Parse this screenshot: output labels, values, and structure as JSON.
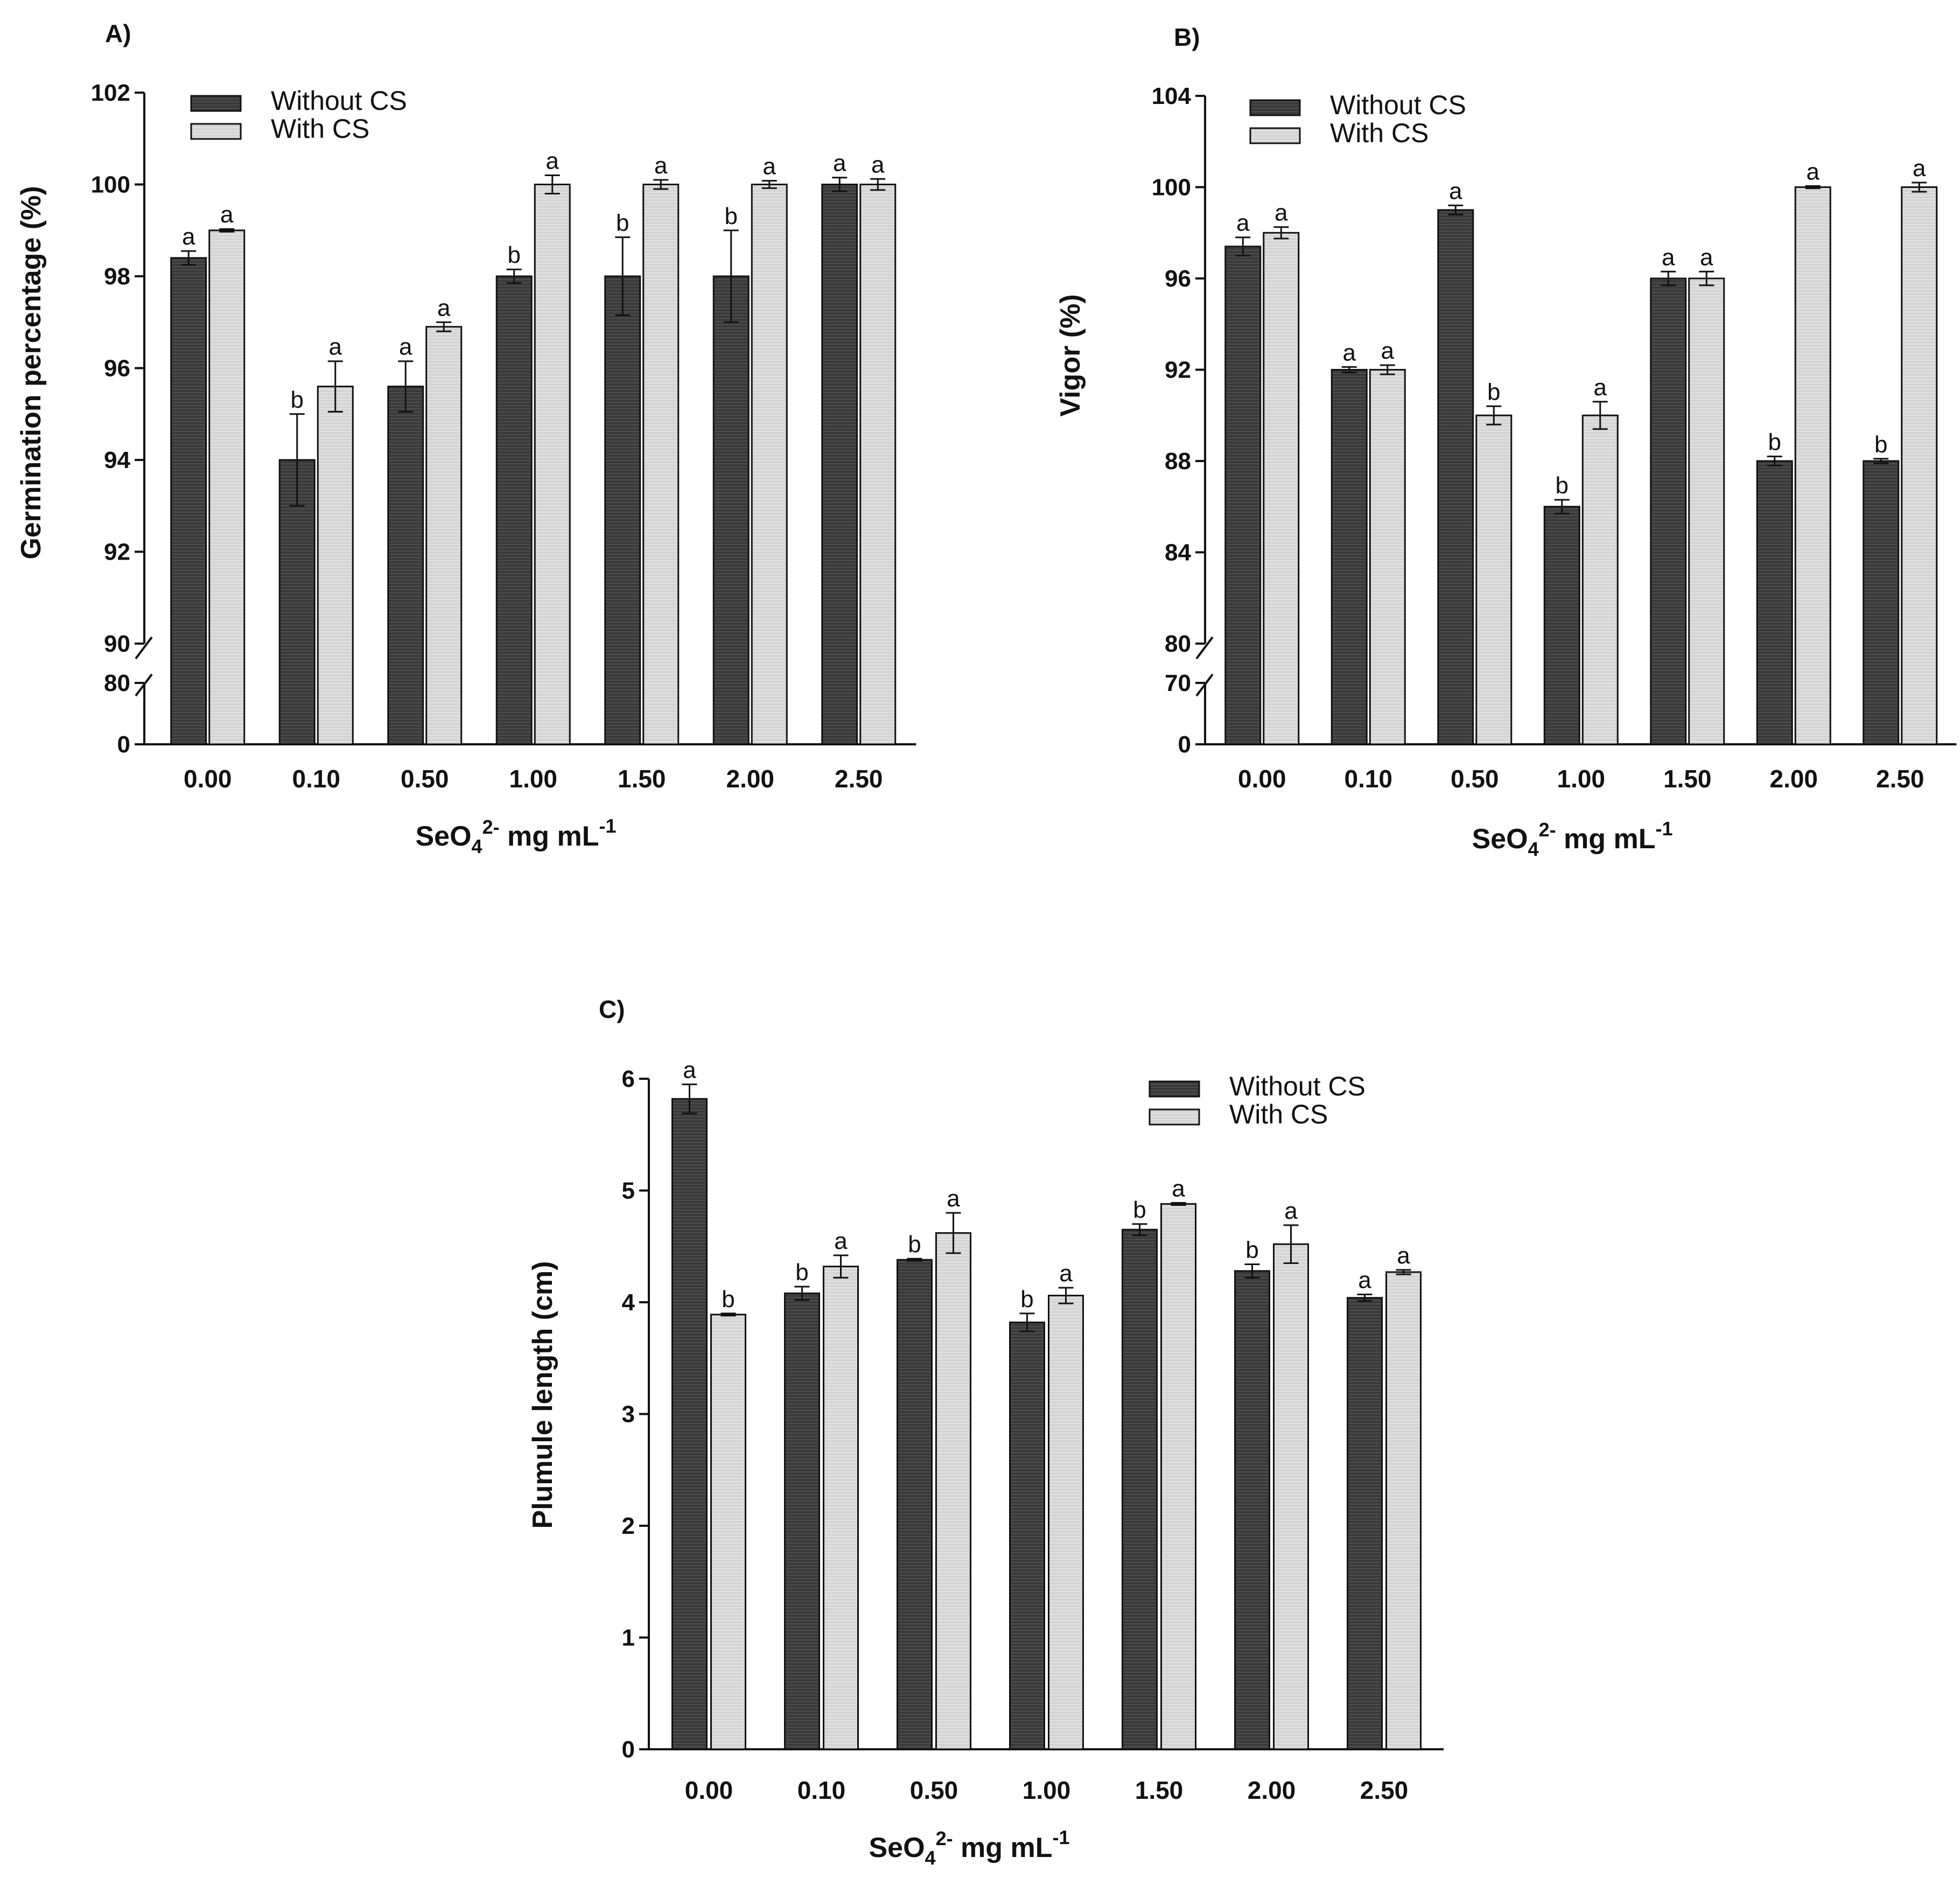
{
  "colors": {
    "without_cs": "#3a3a3a",
    "with_cs": "#d4d4d4",
    "stroke": "#111111"
  },
  "chart_data": [
    {
      "id": "A",
      "type": "bar",
      "panel_label": "A)",
      "categories": [
        "0.00",
        "0.10",
        "0.50",
        "1.00",
        "1.50",
        "2.00",
        "2.50"
      ],
      "series": [
        {
          "name": "Without CS",
          "values": [
            98.4,
            94.0,
            95.6,
            98.0,
            98.0,
            98.0,
            100.0
          ],
          "errors": [
            0.15,
            1.0,
            0.55,
            0.15,
            0.85,
            1.0,
            0.15
          ],
          "letters": [
            "a",
            "b",
            "a",
            "b",
            "b",
            "b",
            "a"
          ]
        },
        {
          "name": "With CS",
          "values": [
            99.0,
            95.6,
            96.9,
            100.0,
            100.0,
            100.0,
            100.0
          ],
          "errors": [
            0.03,
            0.55,
            0.1,
            0.2,
            0.1,
            0.08,
            0.12
          ],
          "letters": [
            "a",
            "a",
            "a",
            "a",
            "a",
            "a",
            "a"
          ]
        }
      ],
      "ylabel": "Germination percentage (%)",
      "xlabel_main": "SeO",
      "xlabel_sub": "4",
      "xlabel_sup": "2-",
      "xlabel_rest": " mg mL",
      "xlabel_unit_sup": "-1",
      "ylim_upper": [
        90,
        102
      ],
      "ylim_lower": [
        0,
        80
      ],
      "yticks_upper": [
        "102",
        "100",
        "98",
        "96",
        "94",
        "92",
        "90"
      ],
      "yticks_lower": [
        "80",
        "0"
      ],
      "legend": [
        "Without CS",
        "With CS"
      ]
    },
    {
      "id": "B",
      "type": "bar",
      "panel_label": "B)",
      "categories": [
        "0.00",
        "0.10",
        "0.50",
        "1.00",
        "1.50",
        "2.00",
        "2.50"
      ],
      "series": [
        {
          "name": "Without CS",
          "values": [
            97.4,
            92.0,
            99.0,
            86.0,
            96.0,
            88.0,
            88.0
          ],
          "errors": [
            0.4,
            0.12,
            0.2,
            0.3,
            0.3,
            0.2,
            0.1
          ],
          "letters": [
            "a",
            "a",
            "a",
            "b",
            "a",
            "b",
            "b"
          ]
        },
        {
          "name": "With CS",
          "values": [
            98.0,
            92.0,
            90.0,
            90.0,
            96.0,
            100.0,
            100.0
          ],
          "errors": [
            0.25,
            0.2,
            0.4,
            0.6,
            0.3,
            0.05,
            0.2
          ],
          "letters": [
            "a",
            "a",
            "b",
            "a",
            "a",
            "a",
            "a"
          ]
        }
      ],
      "ylabel": "Vigor (%)",
      "xlabel_main": "SeO",
      "xlabel_sub": "4",
      "xlabel_sup": "2-",
      "xlabel_rest": " mg mL",
      "xlabel_unit_sup": "-1",
      "ylim_upper": [
        80,
        104
      ],
      "ylim_lower": [
        0,
        70
      ],
      "yticks_upper": [
        "104",
        "100",
        "96",
        "92",
        "88",
        "84",
        "80"
      ],
      "yticks_lower": [
        "70",
        "0"
      ],
      "legend": [
        "Without CS",
        "With CS"
      ]
    },
    {
      "id": "C",
      "type": "bar",
      "panel_label": "C)",
      "categories": [
        "0.00",
        "0.10",
        "0.50",
        "1.00",
        "1.50",
        "2.00",
        "2.50"
      ],
      "series": [
        {
          "name": "Without CS",
          "values": [
            5.82,
            4.08,
            4.38,
            3.82,
            4.65,
            4.28,
            4.04
          ],
          "errors": [
            0.13,
            0.06,
            0.01,
            0.08,
            0.05,
            0.06,
            0.03
          ],
          "letters": [
            "a",
            "b",
            "b",
            "b",
            "b",
            "b",
            "a"
          ]
        },
        {
          "name": "With CS",
          "values": [
            3.89,
            4.32,
            4.62,
            4.06,
            4.88,
            4.52,
            4.27
          ],
          "errors": [
            0.01,
            0.1,
            0.18,
            0.07,
            0.01,
            0.17,
            0.02
          ],
          "letters": [
            "b",
            "a",
            "a",
            "a",
            "a",
            "a",
            "a"
          ]
        }
      ],
      "ylabel": "Plumule length (cm)",
      "xlabel_main": "SeO",
      "xlabel_sub": "4",
      "xlabel_sup": "2-",
      "xlabel_rest": " mg mL",
      "xlabel_unit_sup": "-1",
      "ylim": [
        0,
        6
      ],
      "yticks": [
        "6",
        "5",
        "4",
        "3",
        "2",
        "1",
        "0"
      ],
      "legend": [
        "Without CS",
        "With CS"
      ]
    }
  ]
}
